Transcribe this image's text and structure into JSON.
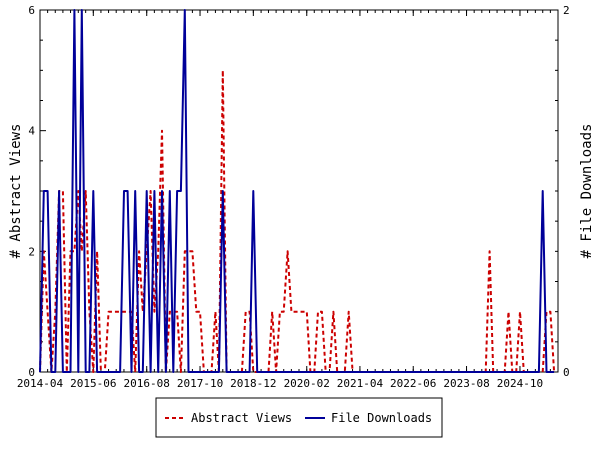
{
  "chart_data": {
    "type": "line",
    "title": "",
    "xlabel": "",
    "y_left_label": "# Abstract Views",
    "y_right_label": "# File Downloads",
    "x_range": [
      "2014-04-01",
      "2025-08-01"
    ],
    "x_tick_labels": [
      "2014-04",
      "2015-06",
      "2016-08",
      "2017-10",
      "2018-12",
      "2020-02",
      "2021-04",
      "2022-06",
      "2023-08",
      "2024-10"
    ],
    "y_left_range": [
      0,
      6
    ],
    "y_left_ticks": [
      0,
      2,
      4,
      6
    ],
    "y_right_range": [
      0,
      2
    ],
    "y_right_ticks": [
      0,
      2
    ],
    "grid": false,
    "legend_position": "bottom",
    "series": [
      {
        "name": "Abstract Views",
        "axis": "left",
        "color": "#cc0000",
        "style": "dashed",
        "points": [
          [
            "2014-04-01",
            0
          ],
          [
            "2014-05-01",
            2
          ],
          [
            "2014-06-01",
            1
          ],
          [
            "2014-07-01",
            0
          ],
          [
            "2014-08-01",
            1
          ],
          [
            "2014-09-01",
            3
          ],
          [
            "2014-10-01",
            3
          ],
          [
            "2014-11-01",
            0
          ],
          [
            "2014-12-01",
            2
          ],
          [
            "2015-01-01",
            2
          ],
          [
            "2015-02-01",
            3
          ],
          [
            "2015-03-01",
            2
          ],
          [
            "2015-04-01",
            3
          ],
          [
            "2015-05-01",
            1
          ],
          [
            "2015-06-01",
            0
          ],
          [
            "2015-07-01",
            2
          ],
          [
            "2015-08-01",
            0
          ],
          [
            "2015-09-01",
            0
          ],
          [
            "2015-10-01",
            1
          ],
          [
            "2015-11-01",
            1
          ],
          [
            "2015-12-01",
            1
          ],
          [
            "2016-01-01",
            1
          ],
          [
            "2016-02-01",
            1
          ],
          [
            "2016-03-01",
            1
          ],
          [
            "2016-04-01",
            1
          ],
          [
            "2016-05-01",
            0
          ],
          [
            "2016-06-01",
            2
          ],
          [
            "2016-07-01",
            1
          ],
          [
            "2016-08-01",
            2
          ],
          [
            "2016-09-01",
            3
          ],
          [
            "2016-10-01",
            1
          ],
          [
            "2016-11-01",
            2
          ],
          [
            "2016-12-01",
            4
          ],
          [
            "2017-01-01",
            0
          ],
          [
            "2017-02-01",
            1
          ],
          [
            "2017-03-01",
            1
          ],
          [
            "2017-04-01",
            1
          ],
          [
            "2017-05-01",
            0
          ],
          [
            "2017-06-01",
            2
          ],
          [
            "2017-07-01",
            2
          ],
          [
            "2017-08-01",
            2
          ],
          [
            "2017-09-01",
            1
          ],
          [
            "2017-10-01",
            1
          ],
          [
            "2017-11-01",
            0
          ],
          [
            "2017-12-01",
            0
          ],
          [
            "2018-01-01",
            0
          ],
          [
            "2018-02-01",
            1
          ],
          [
            "2018-03-01",
            0
          ],
          [
            "2018-04-01",
            5
          ],
          [
            "2018-05-01",
            0
          ],
          [
            "2018-06-01",
            0
          ],
          [
            "2018-07-01",
            0
          ],
          [
            "2018-08-01",
            0
          ],
          [
            "2018-09-01",
            0
          ],
          [
            "2018-10-01",
            1
          ],
          [
            "2018-11-01",
            1
          ],
          [
            "2018-12-01",
            0
          ],
          [
            "2019-01-01",
            0
          ],
          [
            "2019-02-01",
            0
          ],
          [
            "2019-03-01",
            0
          ],
          [
            "2019-04-01",
            0
          ],
          [
            "2019-05-01",
            1
          ],
          [
            "2019-06-01",
            0
          ],
          [
            "2019-07-01",
            1
          ],
          [
            "2019-08-01",
            1
          ],
          [
            "2019-09-01",
            2
          ],
          [
            "2019-10-01",
            1
          ],
          [
            "2019-11-01",
            1
          ],
          [
            "2019-12-01",
            1
          ],
          [
            "2020-01-01",
            1
          ],
          [
            "2020-02-01",
            1
          ],
          [
            "2020-03-01",
            0
          ],
          [
            "2020-04-01",
            0
          ],
          [
            "2020-05-01",
            1
          ],
          [
            "2020-06-01",
            1
          ],
          [
            "2020-07-01",
            0
          ],
          [
            "2020-08-01",
            0
          ],
          [
            "2020-09-01",
            1
          ],
          [
            "2020-10-01",
            0
          ],
          [
            "2020-11-01",
            0
          ],
          [
            "2020-12-01",
            0
          ],
          [
            "2021-01-01",
            1
          ],
          [
            "2021-02-01",
            0
          ],
          [
            "2021-03-01",
            0
          ],
          [
            "2021-06-01",
            0
          ],
          [
            "2022-01-01",
            0
          ],
          [
            "2022-06-01",
            0
          ],
          [
            "2023-01-01",
            0
          ],
          [
            "2023-06-01",
            0
          ],
          [
            "2023-12-01",
            0
          ],
          [
            "2024-01-01",
            0
          ],
          [
            "2024-02-01",
            2
          ],
          [
            "2024-03-01",
            0
          ],
          [
            "2024-04-01",
            0
          ],
          [
            "2024-05-01",
            0
          ],
          [
            "2024-06-01",
            0
          ],
          [
            "2024-07-01",
            1
          ],
          [
            "2024-08-01",
            0
          ],
          [
            "2024-09-01",
            0
          ],
          [
            "2024-10-01",
            1
          ],
          [
            "2024-11-01",
            0
          ],
          [
            "2024-12-01",
            0
          ],
          [
            "2025-01-01",
            0
          ],
          [
            "2025-02-01",
            0
          ],
          [
            "2025-03-01",
            0
          ],
          [
            "2025-04-01",
            0
          ],
          [
            "2025-05-01",
            1
          ],
          [
            "2025-06-01",
            1
          ],
          [
            "2025-07-01",
            0
          ]
        ]
      },
      {
        "name": "File Downloads",
        "axis": "right",
        "color": "#000099",
        "style": "solid",
        "points": [
          [
            "2014-04-01",
            0
          ],
          [
            "2014-05-01",
            1
          ],
          [
            "2014-06-01",
            1
          ],
          [
            "2014-07-01",
            0
          ],
          [
            "2014-08-01",
            0
          ],
          [
            "2014-09-01",
            1
          ],
          [
            "2014-10-01",
            0
          ],
          [
            "2014-11-01",
            0
          ],
          [
            "2014-12-01",
            0
          ],
          [
            "2015-01-01",
            2
          ],
          [
            "2015-02-01",
            0
          ],
          [
            "2015-03-01",
            2
          ],
          [
            "2015-04-01",
            0
          ],
          [
            "2015-05-01",
            0
          ],
          [
            "2015-06-01",
            1
          ],
          [
            "2015-07-01",
            0
          ],
          [
            "2015-08-01",
            0
          ],
          [
            "2015-09-01",
            0
          ],
          [
            "2015-10-01",
            0
          ],
          [
            "2015-11-01",
            0
          ],
          [
            "2015-12-01",
            0
          ],
          [
            "2016-01-01",
            0
          ],
          [
            "2016-02-01",
            1
          ],
          [
            "2016-03-01",
            1
          ],
          [
            "2016-04-01",
            0
          ],
          [
            "2016-05-01",
            1
          ],
          [
            "2016-06-01",
            0
          ],
          [
            "2016-07-01",
            0
          ],
          [
            "2016-08-01",
            1
          ],
          [
            "2016-09-01",
            0
          ],
          [
            "2016-10-01",
            1
          ],
          [
            "2016-11-01",
            0
          ],
          [
            "2016-12-01",
            1
          ],
          [
            "2017-01-01",
            0
          ],
          [
            "2017-02-01",
            1
          ],
          [
            "2017-03-01",
            0
          ],
          [
            "2017-04-01",
            1
          ],
          [
            "2017-05-01",
            1
          ],
          [
            "2017-06-01",
            2
          ],
          [
            "2017-07-01",
            0
          ],
          [
            "2017-08-01",
            0
          ],
          [
            "2017-09-01",
            0
          ],
          [
            "2017-10-01",
            0
          ],
          [
            "2017-11-01",
            0
          ],
          [
            "2017-12-01",
            0
          ],
          [
            "2018-01-01",
            0
          ],
          [
            "2018-02-01",
            0
          ],
          [
            "2018-03-01",
            0
          ],
          [
            "2018-04-01",
            1
          ],
          [
            "2018-05-01",
            0
          ],
          [
            "2018-06-01",
            0
          ],
          [
            "2018-07-01",
            0
          ],
          [
            "2018-08-01",
            0
          ],
          [
            "2018-09-01",
            0
          ],
          [
            "2018-10-01",
            0
          ],
          [
            "2018-11-01",
            0
          ],
          [
            "2018-12-01",
            1
          ],
          [
            "2019-01-01",
            0
          ],
          [
            "2019-06-01",
            0
          ],
          [
            "2020-01-01",
            0
          ],
          [
            "2021-01-01",
            0
          ],
          [
            "2022-01-01",
            0
          ],
          [
            "2023-01-01",
            0
          ],
          [
            "2024-01-01",
            0
          ],
          [
            "2024-06-01",
            0
          ],
          [
            "2025-01-01",
            0
          ],
          [
            "2025-02-01",
            0
          ],
          [
            "2025-03-01",
            0
          ],
          [
            "2025-04-01",
            1
          ],
          [
            "2025-05-01",
            0
          ],
          [
            "2025-06-01",
            0
          ],
          [
            "2025-07-01",
            0
          ]
        ]
      }
    ]
  }
}
